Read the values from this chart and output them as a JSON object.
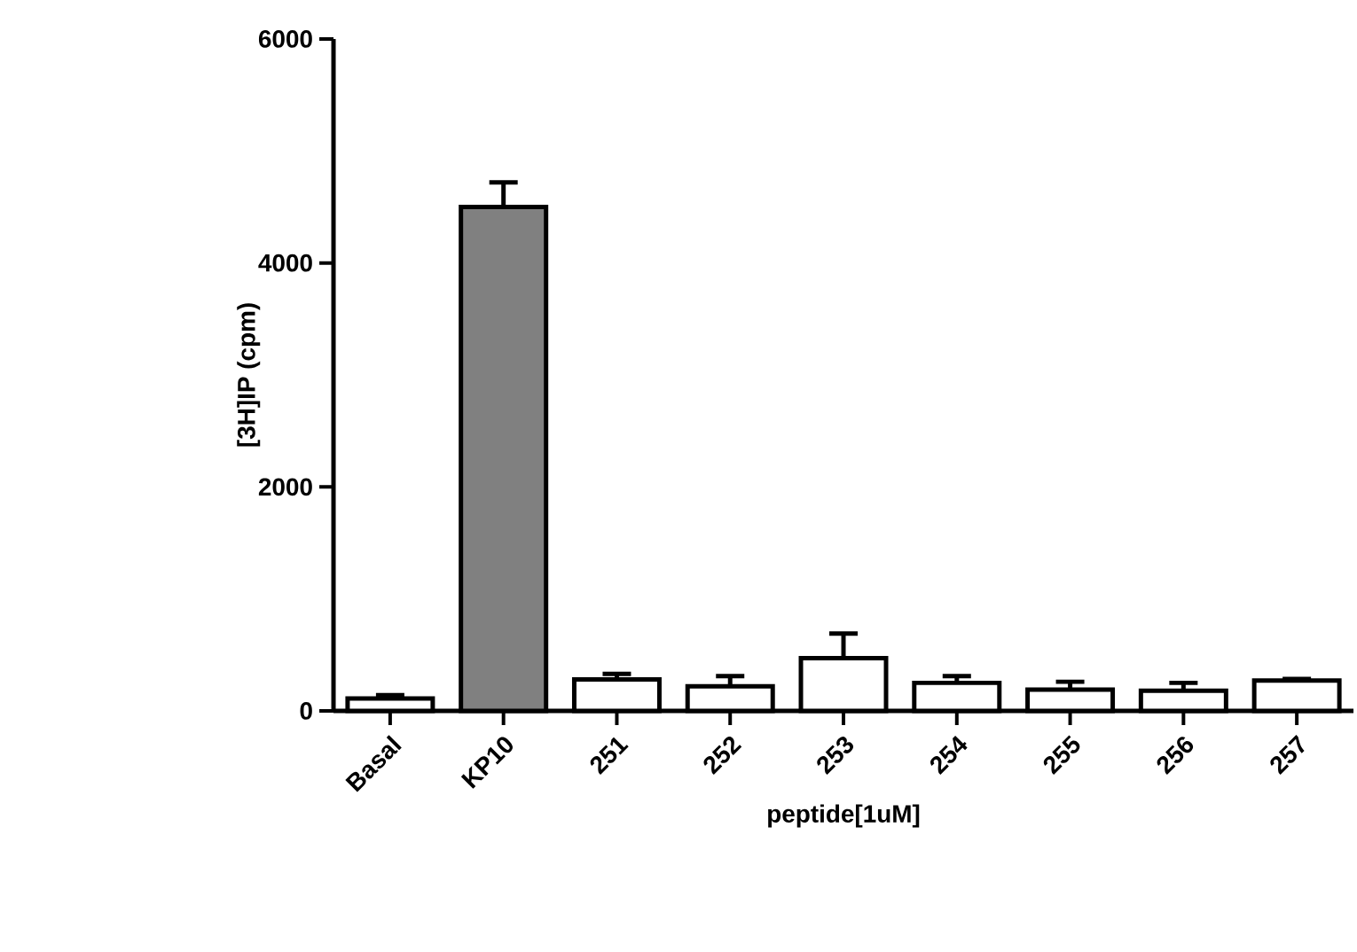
{
  "chart_data": {
    "type": "bar",
    "xlabel": "peptide[1uM]",
    "ylabel": "[3H]IP (cpm)",
    "categories": [
      "Basal",
      "KP10",
      "251",
      "252",
      "253",
      "254",
      "255",
      "256",
      "257"
    ],
    "values": [
      110,
      4500,
      280,
      220,
      470,
      250,
      190,
      180,
      270
    ],
    "errors": [
      30,
      220,
      50,
      90,
      220,
      60,
      70,
      70,
      15
    ],
    "colors": [
      "#ffffff",
      "#808080",
      "#ffffff",
      "#ffffff",
      "#ffffff",
      "#ffffff",
      "#ffffff",
      "#ffffff",
      "#ffffff"
    ],
    "ylim": [
      0,
      6000
    ],
    "yticks": [
      0,
      2000,
      4000,
      6000
    ],
    "grid": false
  }
}
